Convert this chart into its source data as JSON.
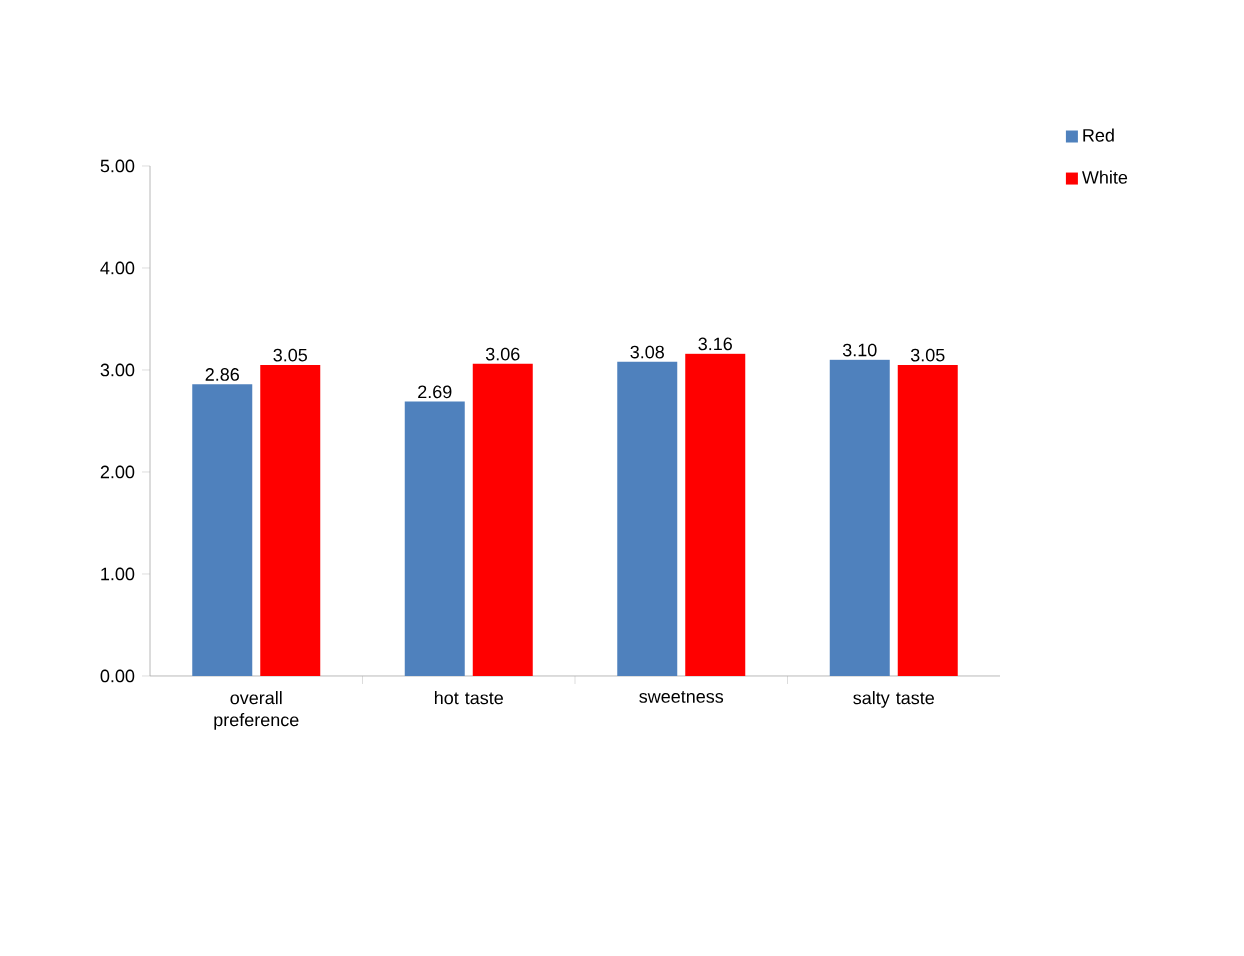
{
  "chart_data": {
    "type": "bar",
    "categories": [
      "overall preference",
      "hot taste",
      "sweetness",
      "salty taste"
    ],
    "series": [
      {
        "name": "Red",
        "color": "#4f81bd",
        "values": [
          2.86,
          2.69,
          3.08,
          3.1
        ],
        "value_labels": [
          "2.86",
          "2.69",
          "3.08",
          "3.10"
        ]
      },
      {
        "name": "White",
        "color": "#ff0000",
        "values": [
          3.05,
          3.06,
          3.16,
          3.05
        ],
        "value_labels": [
          "3.05",
          "3.06",
          "3.16",
          "3.05"
        ]
      }
    ],
    "ylim": [
      0,
      5
    ],
    "yticks": [
      {
        "value": 0,
        "label": "0.00"
      },
      {
        "value": 1,
        "label": "1.00"
      },
      {
        "value": 2,
        "label": "2.00"
      },
      {
        "value": 3,
        "label": "3.00"
      },
      {
        "value": 4,
        "label": "4.00"
      },
      {
        "value": 5,
        "label": "5.00"
      }
    ],
    "legend": "top right"
  }
}
